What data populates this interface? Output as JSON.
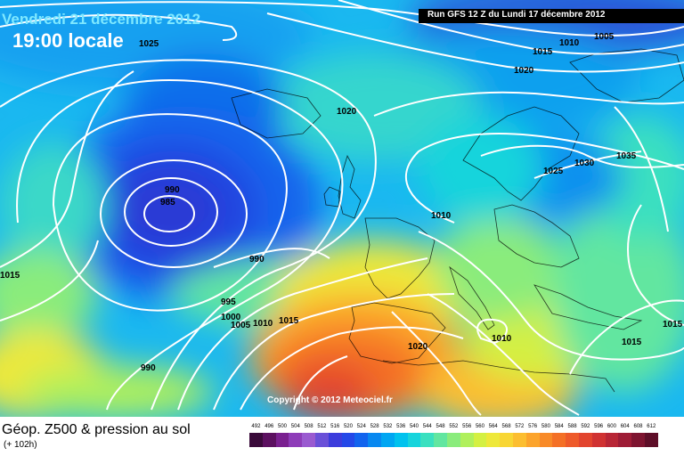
{
  "header": {
    "date_label": "Vendredi 21 décembre 2012",
    "time_label": "19:00 locale",
    "run_label": "Run GFS 12 Z du Lundi 17 décembre 2012"
  },
  "footer": {
    "product_title": "Géop. Z500 & pression au sol",
    "lead_time": "(+ 102h)",
    "copyright": "Copyright © 2012 Meteociel.fr"
  },
  "isobar_labels": [
    "1025",
    "1010",
    "1005",
    "1015",
    "1020",
    "1020",
    "1025",
    "1030",
    "1035",
    "990",
    "985",
    "1010",
    "990",
    "995",
    "1000",
    "1005",
    "1010",
    "1015",
    "990",
    "1015",
    "1020",
    "1010",
    "1015",
    "1015"
  ],
  "colorbar": {
    "ticks": [
      "492",
      "496",
      "500",
      "504",
      "508",
      "512",
      "516",
      "520",
      "524",
      "528",
      "532",
      "536",
      "540",
      "544",
      "548",
      "552",
      "556",
      "560",
      "564",
      "568",
      "572",
      "576",
      "580",
      "584",
      "588",
      "592",
      "596",
      "600",
      "604",
      "608",
      "612"
    ],
    "colors": [
      "#3a0a3a",
      "#5c1060",
      "#7a2090",
      "#8e3cb8",
      "#9a5ad0",
      "#6a50d8",
      "#3c3cdc",
      "#2448e8",
      "#1264ee",
      "#0888f0",
      "#00a6f2",
      "#00c2ee",
      "#16d4dc",
      "#3ae0c0",
      "#62e6a0",
      "#8aec7c",
      "#b0f05c",
      "#d4f042",
      "#eee83a",
      "#f8d634",
      "#fcbe30",
      "#fca42c",
      "#f88a28",
      "#f47026",
      "#ee5a2a",
      "#e2442e",
      "#d03232",
      "#b82636",
      "#9e1c36",
      "#7e1430",
      "#5e0e28"
    ]
  }
}
